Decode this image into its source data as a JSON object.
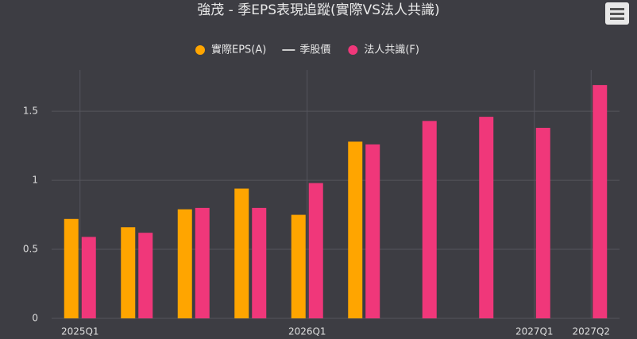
{
  "chart_data": {
    "type": "bar",
    "title": "強茂 - 季EPS表現追蹤(實際VS法人共識)",
    "categories": [
      "2025Q1",
      null,
      null,
      null,
      "2026Q1",
      null,
      null,
      null,
      "2027Q1",
      "2027Q2"
    ],
    "series": [
      {
        "name": "實際EPS(A)",
        "color": "#ffa500",
        "type": "bar",
        "values": [
          0.72,
          0.66,
          0.79,
          0.94,
          0.75,
          1.28,
          null,
          null,
          null,
          null
        ]
      },
      {
        "name": "季股價",
        "color": "#cccccc",
        "type": "line",
        "values": [
          null,
          null,
          null,
          null,
          null,
          null,
          null,
          null,
          null,
          null
        ]
      },
      {
        "name": "法人共識(F)",
        "color": "#f0377a",
        "type": "bar",
        "values": [
          0.59,
          0.62,
          0.8,
          0.8,
          0.98,
          1.26,
          1.43,
          1.46,
          1.38,
          1.69
        ]
      }
    ],
    "ylim": [
      0,
      1.8
    ],
    "yticks": [
      0,
      0.5,
      1,
      1.5
    ],
    "grid": true
  }
}
